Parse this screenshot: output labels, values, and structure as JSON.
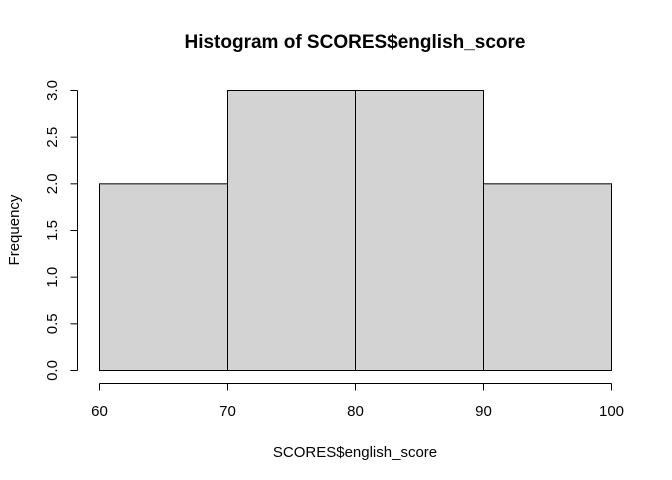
{
  "chart_data": {
    "type": "bar",
    "title": "Histogram of SCORES$english_score",
    "xlabel": "SCORES$english_score",
    "ylabel": "Frequency",
    "bins": [
      {
        "from": 60,
        "to": 70,
        "count": 2
      },
      {
        "from": 70,
        "to": 80,
        "count": 3
      },
      {
        "from": 80,
        "to": 90,
        "count": 3
      },
      {
        "from": 90,
        "to": 100,
        "count": 2
      }
    ],
    "xlim": [
      60,
      100
    ],
    "ylim": [
      0,
      3
    ],
    "xticks": [
      "60",
      "70",
      "80",
      "90",
      "100"
    ],
    "yticks": [
      "0.0",
      "0.5",
      "1.0",
      "1.5",
      "2.0",
      "2.5",
      "3.0"
    ],
    "grid": false,
    "colors": {
      "bar_fill": "#d3d3d3",
      "bar_stroke": "#000000"
    }
  }
}
